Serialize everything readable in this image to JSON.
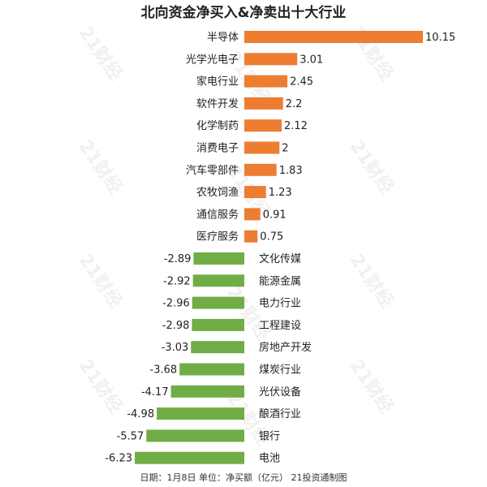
{
  "chart_data": {
    "type": "bar",
    "orientation": "horizontal",
    "title": "北向资金净买入&净卖出十大行业",
    "categories": [
      "半导体",
      "光学光电子",
      "家电行业",
      "软件开发",
      "化学制药",
      "消费电子",
      "汽车零部件",
      "农牧饲渔",
      "通信服务",
      "医疗服务",
      "文化传媒",
      "能源金属",
      "电力行业",
      "工程建设",
      "房地产开发",
      "煤炭行业",
      "光伏设备",
      "酿酒行业",
      "银行",
      "电池"
    ],
    "values": [
      10.15,
      3.01,
      2.45,
      2.2,
      2.12,
      2,
      1.83,
      1.23,
      0.91,
      0.75,
      -2.89,
      -2.92,
      -2.96,
      -2.98,
      -3.03,
      -3.68,
      -4.17,
      -4.98,
      -5.57,
      -6.23
    ],
    "value_labels": [
      "10.15",
      "3.01",
      "2.45",
      "2.2",
      "2.12",
      "2",
      "1.83",
      "1.23",
      "0.91",
      "0.75",
      "-2.89",
      "-2.92",
      "-2.96",
      "-2.98",
      "-3.03",
      "-3.68",
      "-4.17",
      "-4.98",
      "-5.57",
      "-6.23"
    ],
    "xlabel": "",
    "ylabel": "",
    "grid": false,
    "legend": "none",
    "colors": {
      "positive": "#ED7D31",
      "negative": "#70AD47"
    }
  },
  "footer": "日期：1月8日 单位：净买额（亿元） 21投资通制图",
  "watermark": "21财经"
}
